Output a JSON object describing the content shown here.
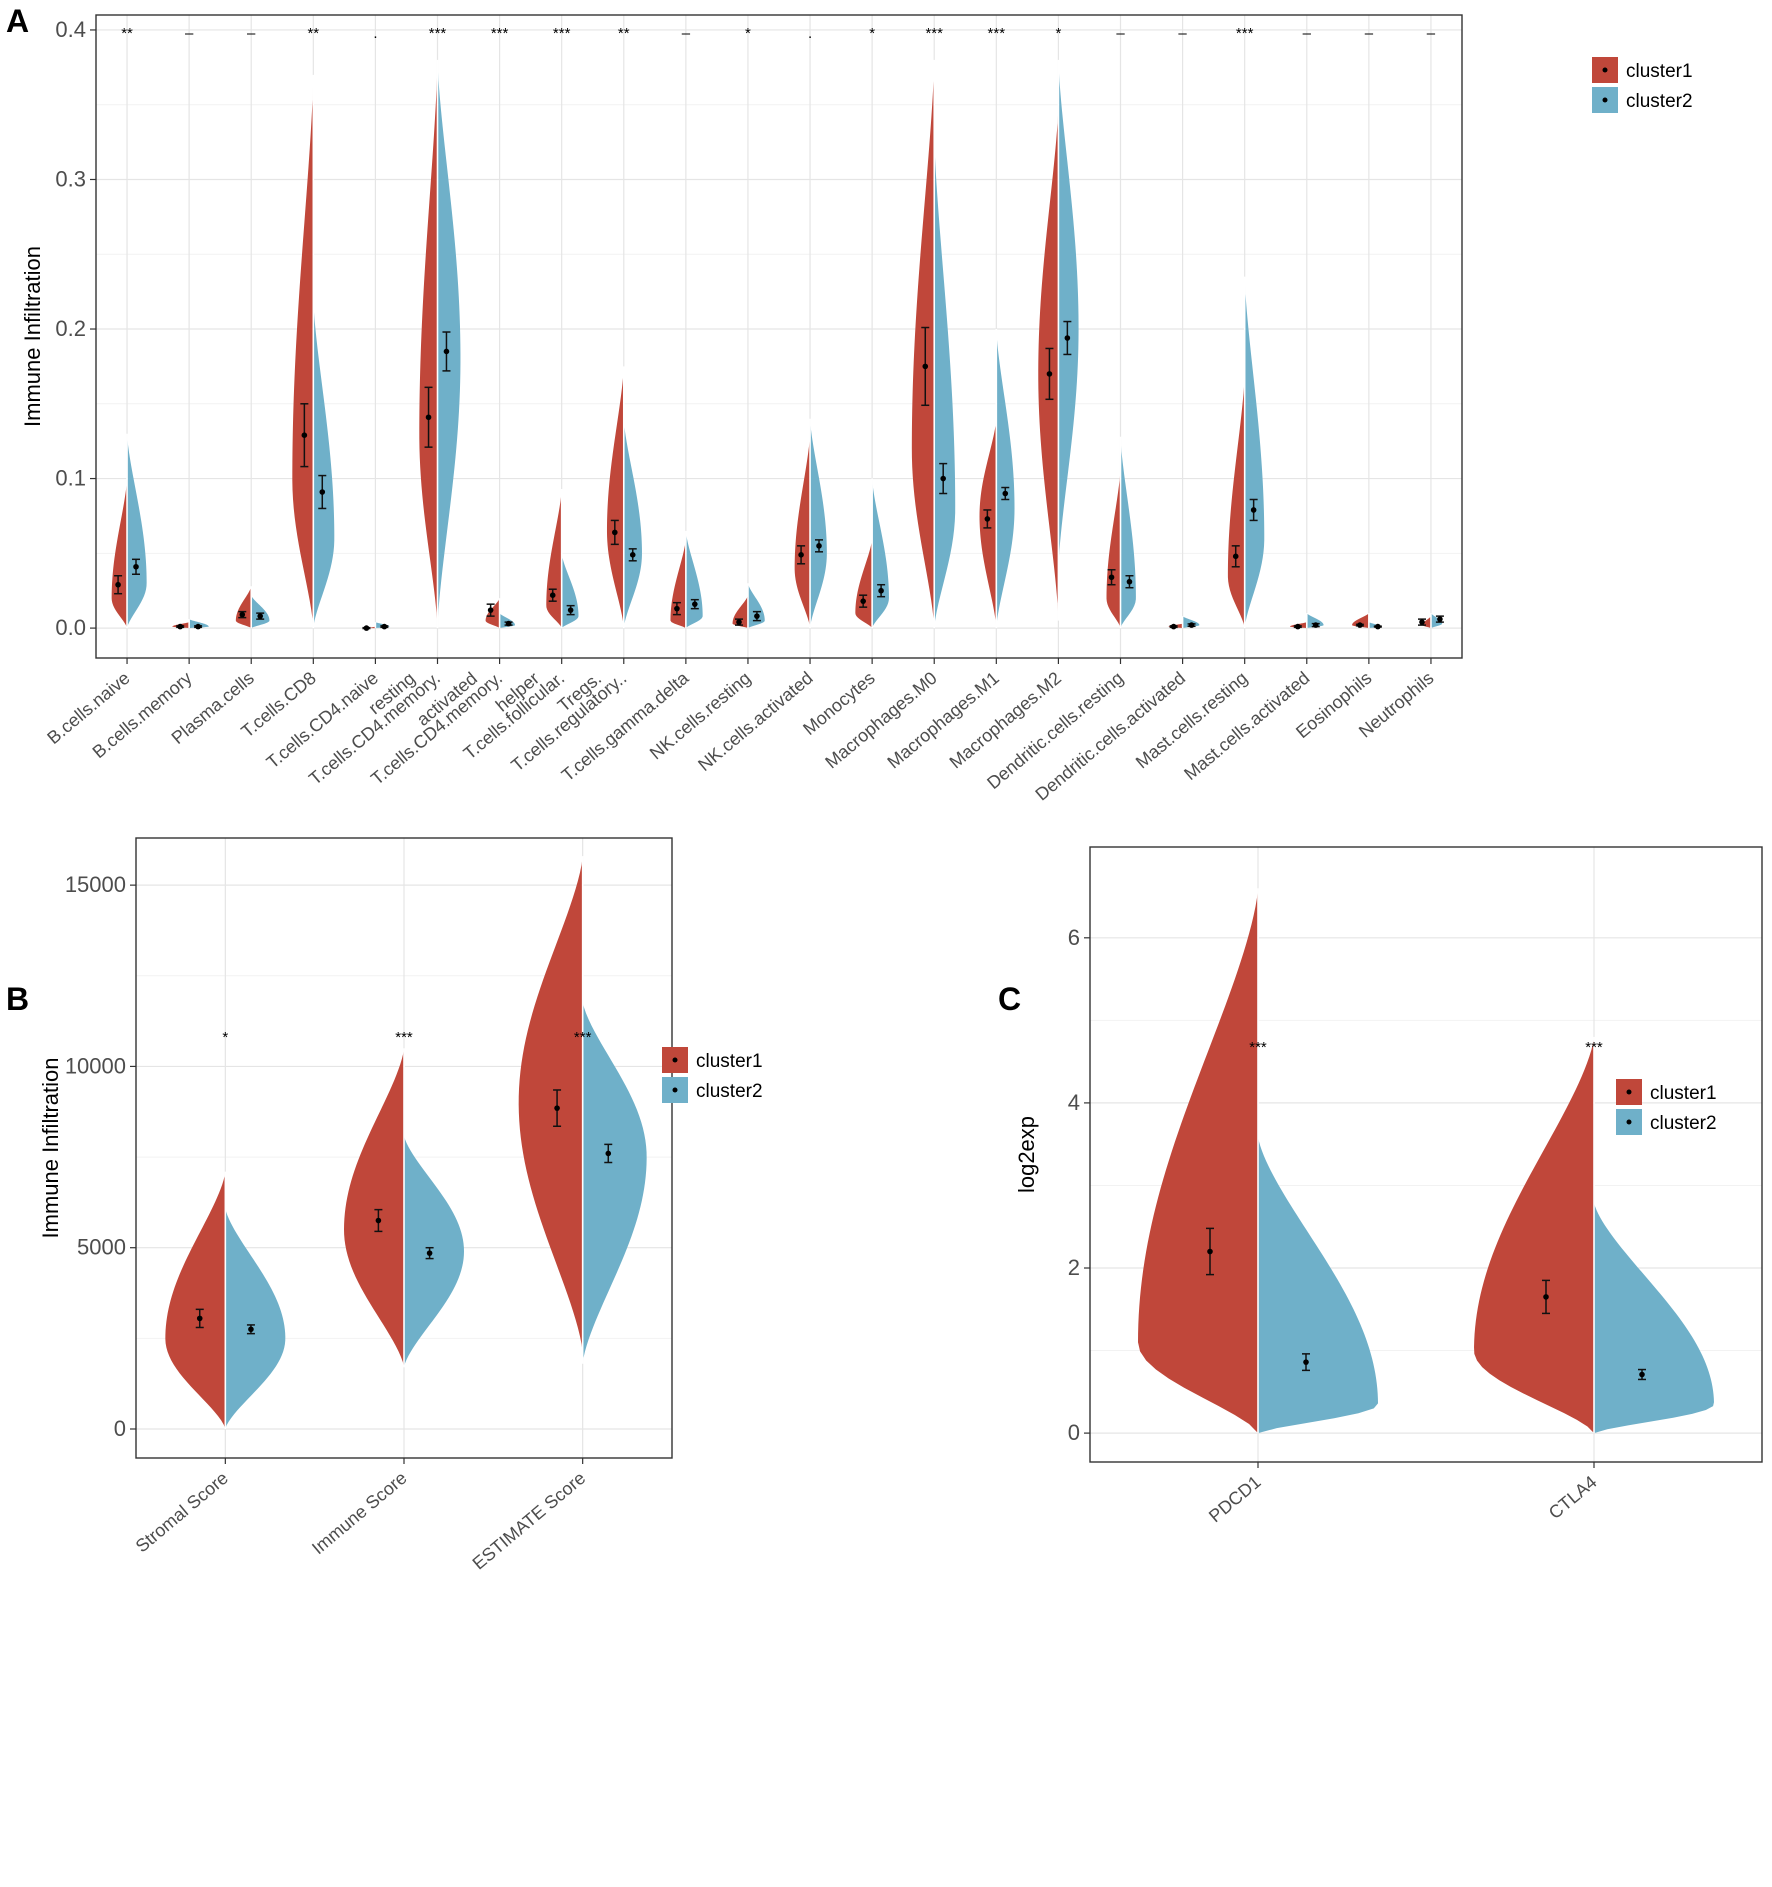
{
  "colors": {
    "cluster1": "#C0473A",
    "cluster2": "#6FB0C9",
    "grid_major": "#e5e5e5",
    "grid_minor": "#f2f2f2",
    "frame": "#333333"
  },
  "chart_data": [
    {
      "panel": "A",
      "type": "split-violin",
      "ylabel": "Immune Infiltration",
      "ylim": [
        -0.02,
        0.41
      ],
      "yticks": [
        0.0,
        0.1,
        0.2,
        0.3,
        0.4
      ],
      "ytick_labels": [
        "0.0",
        "0.1",
        "0.2",
        "0.3",
        "0.4"
      ],
      "legend": [
        "cluster1",
        "cluster2"
      ],
      "legend_position": "top-right",
      "categories": [
        {
          "label": [
            "B.cells.naive"
          ],
          "sig": "**",
          "c1": {
            "max": 0.1,
            "min": 0,
            "peak": 0.02,
            "w": 0.55,
            "mean": 0.029,
            "se": 0.006
          },
          "c2": {
            "max": 0.13,
            "min": 0,
            "peak": 0.03,
            "w": 0.7,
            "mean": 0.041,
            "se": 0.005
          }
        },
        {
          "label": [
            "B.cells.memory"
          ],
          "sig": "–",
          "c1": {
            "max": 0.004,
            "min": 0,
            "peak": 0.001,
            "w": 0.6,
            "mean": 0.001,
            "se": 0.0005
          },
          "c2": {
            "max": 0.006,
            "min": 0,
            "peak": 0.001,
            "w": 0.7,
            "mean": 0.001,
            "se": 0.0005
          }
        },
        {
          "label": [
            "Plasma.cells"
          ],
          "sig": "–",
          "c1": {
            "max": 0.028,
            "min": 0,
            "peak": 0.005,
            "w": 0.55,
            "mean": 0.009,
            "se": 0.002
          },
          "c2": {
            "max": 0.022,
            "min": 0,
            "peak": 0.005,
            "w": 0.65,
            "mean": 0.008,
            "se": 0.002
          }
        },
        {
          "label": [
            "T.cells.CD8"
          ],
          "sig": "**",
          "c1": {
            "max": 0.37,
            "min": 0,
            "peak": 0.1,
            "w": 0.75,
            "mean": 0.129,
            "se": 0.021
          },
          "c2": {
            "max": 0.22,
            "min": 0,
            "peak": 0.06,
            "w": 0.75,
            "mean": 0.091,
            "se": 0.011
          }
        },
        {
          "label": [
            "T.cells.CD4.naive",
            "resting"
          ],
          "sig": ".",
          "c1": {
            "max": 0.001,
            "min": 0,
            "peak": 0,
            "w": 0.2,
            "mean": 0.0,
            "se": 0.0003
          },
          "c2": {
            "max": 0.004,
            "min": 0,
            "peak": 0.001,
            "w": 0.5,
            "mean": 0.001,
            "se": 0.0005
          }
        },
        {
          "label": [
            "T.cells.CD4.memory.",
            "activated"
          ],
          "sig": "***",
          "c1": {
            "max": 0.38,
            "min": 0,
            "peak": 0.13,
            "w": 0.65,
            "mean": 0.141,
            "se": 0.02
          },
          "c2": {
            "max": 0.38,
            "min": 0,
            "peak": 0.18,
            "w": 0.82,
            "mean": 0.185,
            "se": 0.013
          }
        },
        {
          "label": [
            "T.cells.CD4.memory.",
            "helper"
          ],
          "sig": "***",
          "c1": {
            "max": 0.02,
            "min": 0,
            "peak": 0.005,
            "w": 0.5,
            "mean": 0.012,
            "se": 0.004
          },
          "c2": {
            "max": 0.01,
            "min": 0,
            "peak": 0.002,
            "w": 0.55,
            "mean": 0.003,
            "se": 0.001
          }
        },
        {
          "label": [
            "T.cells.follicular.",
            "Tregs."
          ],
          "sig": "***",
          "c1": {
            "max": 0.093,
            "min": 0,
            "peak": 0.015,
            "w": 0.55,
            "mean": 0.022,
            "se": 0.004
          },
          "c2": {
            "max": 0.05,
            "min": 0,
            "peak": 0.008,
            "w": 0.6,
            "mean": 0.012,
            "se": 0.003
          }
        },
        {
          "label": [
            "T.cells.regulatory.."
          ],
          "sig": "**",
          "c1": {
            "max": 0.175,
            "min": 0,
            "peak": 0.065,
            "w": 0.6,
            "mean": 0.064,
            "se": 0.008
          },
          "c2": {
            "max": 0.14,
            "min": 0,
            "peak": 0.05,
            "w": 0.65,
            "mean": 0.049,
            "se": 0.004
          }
        },
        {
          "label": [
            "T.cells.gamma.delta"
          ],
          "sig": "–",
          "c1": {
            "max": 0.06,
            "min": 0,
            "peak": 0.005,
            "w": 0.55,
            "mean": 0.013,
            "se": 0.004
          },
          "c2": {
            "max": 0.065,
            "min": 0,
            "peak": 0.008,
            "w": 0.6,
            "mean": 0.016,
            "se": 0.003
          }
        },
        {
          "label": [
            "NK.cells.resting"
          ],
          "sig": "*",
          "c1": {
            "max": 0.022,
            "min": 0,
            "peak": 0.003,
            "w": 0.55,
            "mean": 0.004,
            "se": 0.002
          },
          "c2": {
            "max": 0.03,
            "min": 0,
            "peak": 0.005,
            "w": 0.6,
            "mean": 0.008,
            "se": 0.003
          }
        },
        {
          "label": [
            "NK.cells.activated"
          ],
          "sig": ".",
          "c1": {
            "max": 0.13,
            "min": 0,
            "peak": 0.04,
            "w": 0.55,
            "mean": 0.049,
            "se": 0.006
          },
          "c2": {
            "max": 0.14,
            "min": 0,
            "peak": 0.05,
            "w": 0.6,
            "mean": 0.055,
            "se": 0.004
          }
        },
        {
          "label": [
            "Monocytes"
          ],
          "sig": "*",
          "c1": {
            "max": 0.06,
            "min": 0,
            "peak": 0.01,
            "w": 0.6,
            "mean": 0.018,
            "se": 0.004
          },
          "c2": {
            "max": 0.1,
            "min": 0,
            "peak": 0.02,
            "w": 0.6,
            "mean": 0.025,
            "se": 0.004
          }
        },
        {
          "label": [
            "Macrophages.M0"
          ],
          "sig": "***",
          "c1": {
            "max": 0.38,
            "min": 0,
            "peak": 0.12,
            "w": 0.8,
            "mean": 0.175,
            "se": 0.026
          },
          "c2": {
            "max": 0.33,
            "min": 0,
            "peak": 0.08,
            "w": 0.75,
            "mean": 0.1,
            "se": 0.01
          }
        },
        {
          "label": [
            "Macrophages.M1"
          ],
          "sig": "***",
          "c1": {
            "max": 0.14,
            "min": 0,
            "peak": 0.075,
            "w": 0.6,
            "mean": 0.073,
            "se": 0.006
          },
          "c2": {
            "max": 0.2,
            "min": 0,
            "peak": 0.08,
            "w": 0.65,
            "mean": 0.09,
            "se": 0.004
          }
        },
        {
          "label": [
            "Macrophages.M2"
          ],
          "sig": "*",
          "c1": {
            "max": 0.35,
            "min": 0.005,
            "peak": 0.17,
            "w": 0.72,
            "mean": 0.17,
            "se": 0.017
          },
          "c2": {
            "max": 0.38,
            "min": 0.04,
            "peak": 0.2,
            "w": 0.72,
            "mean": 0.194,
            "se": 0.011
          }
        },
        {
          "label": [
            "Dendritic.cells.resting"
          ],
          "sig": "–",
          "c1": {
            "max": 0.107,
            "min": 0,
            "peak": 0.02,
            "w": 0.5,
            "mean": 0.034,
            "se": 0.005
          },
          "c2": {
            "max": 0.128,
            "min": 0,
            "peak": 0.02,
            "w": 0.55,
            "mean": 0.031,
            "se": 0.004
          }
        },
        {
          "label": [
            "Dendritic.cells.activated"
          ],
          "sig": "–",
          "c1": {
            "max": 0.003,
            "min": 0,
            "peak": 0.001,
            "w": 0.5,
            "mean": 0.001,
            "se": 0.0005
          },
          "c2": {
            "max": 0.008,
            "min": 0,
            "peak": 0.002,
            "w": 0.6,
            "mean": 0.002,
            "se": 0.0008
          }
        },
        {
          "label": [
            "Mast.cells.resting"
          ],
          "sig": "***",
          "c1": {
            "max": 0.17,
            "min": 0,
            "peak": 0.035,
            "w": 0.6,
            "mean": 0.048,
            "se": 0.007
          },
          "c2": {
            "max": 0.235,
            "min": 0,
            "peak": 0.06,
            "w": 0.7,
            "mean": 0.079,
            "se": 0.007
          }
        },
        {
          "label": [
            "Mast.cells.activated"
          ],
          "sig": "–",
          "c1": {
            "max": 0.004,
            "min": 0,
            "peak": 0.001,
            "w": 0.6,
            "mean": 0.001,
            "se": 0.0005
          },
          "c2": {
            "max": 0.01,
            "min": 0,
            "peak": 0.002,
            "w": 0.6,
            "mean": 0.002,
            "se": 0.001
          }
        },
        {
          "label": [
            "Eosinophils"
          ],
          "sig": "–",
          "c1": {
            "max": 0.01,
            "min": 0,
            "peak": 0.002,
            "w": 0.6,
            "mean": 0.002,
            "se": 0.0005
          },
          "c2": {
            "max": 0.004,
            "min": 0,
            "peak": 0.001,
            "w": 0.4,
            "mean": 0.001,
            "se": 0.0003
          }
        },
        {
          "label": [
            "Neutrophils"
          ],
          "sig": "–",
          "c1": {
            "max": 0.008,
            "min": 0,
            "peak": 0.002,
            "w": 0.3,
            "mean": 0.004,
            "se": 0.002
          },
          "c2": {
            "max": 0.01,
            "min": 0,
            "peak": 0.003,
            "w": 0.4,
            "mean": 0.006,
            "se": 0.002
          }
        }
      ]
    },
    {
      "panel": "B",
      "type": "split-violin",
      "ylabel": "Immune Infiltration",
      "ylim": [
        -800,
        16300
      ],
      "yticks": [
        0,
        5000,
        10000,
        15000
      ],
      "ytick_labels": [
        "0",
        "5000",
        "10000",
        "15000"
      ],
      "legend": [
        "cluster1",
        "cluster2"
      ],
      "legend_position": "top-right",
      "categories": [
        {
          "label": [
            "Stromal Score"
          ],
          "sig": "*",
          "c1": {
            "max": 7100,
            "min": 0,
            "peak": 2500,
            "w": 0.75,
            "mean": 3050,
            "se": 250
          },
          "c2": {
            "max": 6100,
            "min": 0,
            "peak": 2500,
            "w": 0.75,
            "mean": 2750,
            "se": 120
          }
        },
        {
          "label": [
            "Immune Score"
          ],
          "sig": "***",
          "c1": {
            "max": 10500,
            "min": 1700,
            "peak": 5500,
            "w": 0.75,
            "mean": 5750,
            "se": 300
          },
          "c2": {
            "max": 8100,
            "min": 1700,
            "peak": 4900,
            "w": 0.75,
            "mean": 4850,
            "se": 150
          }
        },
        {
          "label": [
            "ESTIMATE Score"
          ],
          "sig": "***",
          "c1": {
            "max": 15800,
            "min": 2100,
            "peak": 9000,
            "w": 0.8,
            "mean": 8850,
            "se": 500
          },
          "c2": {
            "max": 11800,
            "min": 1800,
            "peak": 7500,
            "w": 0.8,
            "mean": 7600,
            "se": 250
          }
        }
      ]
    },
    {
      "panel": "C",
      "type": "split-violin",
      "ylabel": "log2exp",
      "ylim": [
        -0.35,
        7.1
      ],
      "yticks": [
        0,
        2,
        4,
        6
      ],
      "ytick_labels": [
        "0",
        "2",
        "4",
        "6"
      ],
      "legend": [
        "cluster1",
        "cluster2"
      ],
      "legend_position": "top-right",
      "categories": [
        {
          "label": [
            "PDCD1"
          ],
          "sig": "***",
          "c1": {
            "max": 6.6,
            "min": 0,
            "peak": 1.1,
            "w": 0.8,
            "mean": 2.2,
            "se": 0.28
          },
          "c2": {
            "max": 3.6,
            "min": 0,
            "peak": 0.35,
            "w": 0.8,
            "mean": 0.86,
            "se": 0.1
          }
        },
        {
          "label": [
            "CTLA4"
          ],
          "sig": "***",
          "c1": {
            "max": 4.8,
            "min": 0,
            "peak": 1.0,
            "w": 0.8,
            "mean": 1.65,
            "se": 0.2
          },
          "c2": {
            "max": 2.8,
            "min": 0,
            "peak": 0.35,
            "w": 0.8,
            "mean": 0.71,
            "se": 0.06
          }
        }
      ]
    }
  ],
  "panel_labels": {
    "a": "A",
    "b": "B",
    "c": "C"
  }
}
